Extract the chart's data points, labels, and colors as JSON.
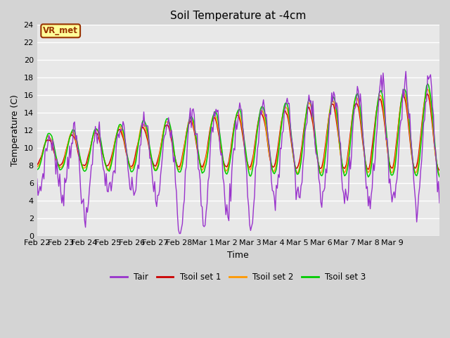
{
  "title": "Soil Temperature at -4cm",
  "xlabel": "Time",
  "ylabel": "Temperature (C)",
  "ylim": [
    0,
    24
  ],
  "yticks": [
    0,
    2,
    4,
    6,
    8,
    10,
    12,
    14,
    16,
    18,
    20,
    22,
    24
  ],
  "xtick_labels": [
    "Feb 22",
    "Feb 23",
    "Feb 24",
    "Feb 25",
    "Feb 26",
    "Feb 27",
    "Feb 28",
    "Mar 1",
    "Mar 2",
    "Mar 3",
    "Mar 4",
    "Mar 5",
    "Mar 6",
    "Mar 7",
    "Mar 8",
    "Mar 9"
  ],
  "colors": {
    "Tair": "#9933cc",
    "Tsoil1": "#cc0000",
    "Tsoil2": "#ff9900",
    "Tsoil3": "#00cc00"
  },
  "legend_labels": [
    "Tair",
    "Tsoil set 1",
    "Tsoil set 2",
    "Tsoil set 3"
  ],
  "annotation_text": "VR_met",
  "annotation_color": "#993300",
  "annotation_bg": "#ffff99",
  "fig_bg_color": "#d4d4d4",
  "plot_bg_color": "#e8e8e8"
}
